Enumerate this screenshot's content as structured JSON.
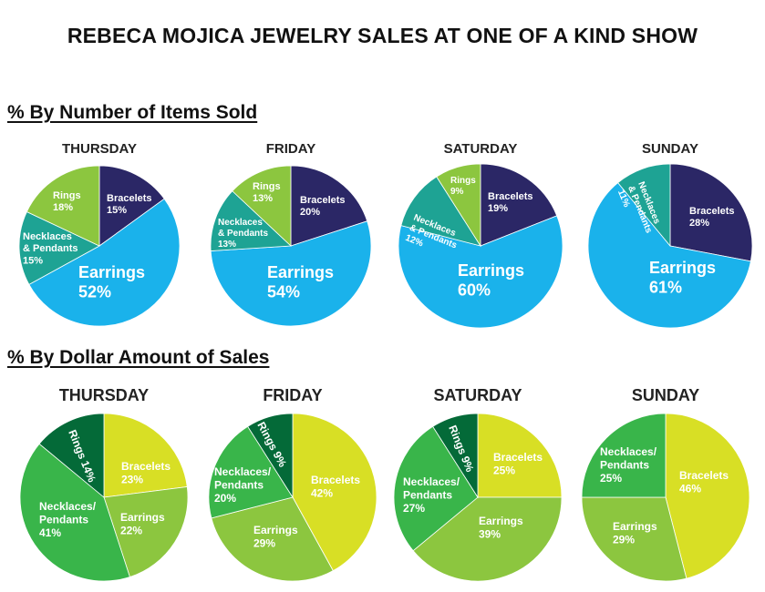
{
  "title": "REBECA MOJICA JEWELRY SALES AT ONE OF A KIND SHOW",
  "sections": [
    {
      "title": "% By Number of Items Sold"
    },
    {
      "title": "% By Dollar Amount of Sales"
    }
  ],
  "colors": {
    "section1": {
      "Bracelets": "#2b2766",
      "Earrings": "#1ab2eb",
      "Necklaces & Pendants": "#1ea394",
      "Rings": "#8cc63f"
    },
    "section2": {
      "Bracelets": "#d8df25",
      "Earrings": "#8cc63f",
      "Necklaces/Pendants": "#39b54a",
      "Rings": "#046a38"
    }
  },
  "chart_data": [
    {
      "type": "pie",
      "group": "% By Number of Items Sold",
      "title": "THURSDAY",
      "slices": [
        {
          "name": "Bracelets",
          "label": [
            "Bracelets",
            "15%"
          ],
          "value": 15
        },
        {
          "name": "Earrings",
          "label": [
            "Earrings",
            "52%"
          ],
          "value": 52
        },
        {
          "name": "Necklaces & Pendants",
          "label": [
            "Necklaces",
            "& Pendants",
            "15%"
          ],
          "value": 15
        },
        {
          "name": "Rings",
          "label": [
            "Rings",
            "18%"
          ],
          "value": 18
        }
      ]
    },
    {
      "type": "pie",
      "group": "% By Number of Items Sold",
      "title": "FRIDAY",
      "slices": [
        {
          "name": "Bracelets",
          "label": [
            "Bracelets",
            "20%"
          ],
          "value": 20
        },
        {
          "name": "Earrings",
          "label": [
            "Earrings",
            "54%"
          ],
          "value": 54
        },
        {
          "name": "Necklaces & Pendants",
          "label": [
            "Necklaces",
            "& Pendants",
            "13%"
          ],
          "value": 13
        },
        {
          "name": "Rings",
          "label": [
            "Rings",
            "13%"
          ],
          "value": 13
        }
      ]
    },
    {
      "type": "pie",
      "group": "% By Number of Items Sold",
      "title": "SATURDAY",
      "slices": [
        {
          "name": "Bracelets",
          "label": [
            "Bracelets",
            "19%"
          ],
          "value": 19
        },
        {
          "name": "Earrings",
          "label": [
            "Earrings",
            "60%"
          ],
          "value": 60
        },
        {
          "name": "Necklaces & Pendants",
          "label": [
            "Necklaces",
            "& Pendants",
            "12%"
          ],
          "value": 12
        },
        {
          "name": "Rings",
          "label": [
            "Rings",
            "9%"
          ],
          "value": 9
        }
      ]
    },
    {
      "type": "pie",
      "group": "% By Number of Items Sold",
      "title": "SUNDAY",
      "slices": [
        {
          "name": "Bracelets",
          "label": [
            "Bracelets",
            "28%"
          ],
          "value": 28
        },
        {
          "name": "Earrings",
          "label": [
            "Earrings",
            "61%"
          ],
          "value": 61
        },
        {
          "name": "Necklaces & Pendants",
          "label": [
            "Necklaces",
            "& Pendants",
            "11%"
          ],
          "value": 11
        }
      ]
    },
    {
      "type": "pie",
      "group": "% By Dollar Amount of Sales",
      "title": "THURSDAY",
      "slices": [
        {
          "name": "Bracelets",
          "label": [
            "Bracelets",
            "23%"
          ],
          "value": 23
        },
        {
          "name": "Earrings",
          "label": [
            "Earrings",
            "22%"
          ],
          "value": 22
        },
        {
          "name": "Necklaces/Pendants",
          "label": [
            "Necklaces/",
            "Pendants",
            "41%"
          ],
          "value": 41
        },
        {
          "name": "Rings",
          "label": [
            "Rings 14%"
          ],
          "value": 14
        }
      ]
    },
    {
      "type": "pie",
      "group": "% By Dollar Amount of Sales",
      "title": "FRIDAY",
      "slices": [
        {
          "name": "Bracelets",
          "label": [
            "Bracelets",
            "42%"
          ],
          "value": 42
        },
        {
          "name": "Earrings",
          "label": [
            "Earrings",
            "29%"
          ],
          "value": 29
        },
        {
          "name": "Necklaces/Pendants",
          "label": [
            "Necklaces/",
            "Pendants",
            "20%"
          ],
          "value": 20
        },
        {
          "name": "Rings",
          "label": [
            "Rings 9%"
          ],
          "value": 9
        }
      ]
    },
    {
      "type": "pie",
      "group": "% By Dollar Amount of Sales",
      "title": "SATURDAY",
      "slices": [
        {
          "name": "Bracelets",
          "label": [
            "Bracelets",
            "25%"
          ],
          "value": 25
        },
        {
          "name": "Earrings",
          "label": [
            "Earrings",
            "39%"
          ],
          "value": 39
        },
        {
          "name": "Necklaces/Pendants",
          "label": [
            "Necklaces/",
            "Pendants",
            "27%"
          ],
          "value": 27
        },
        {
          "name": "Rings",
          "label": [
            "Rings 9%"
          ],
          "value": 9
        }
      ]
    },
    {
      "type": "pie",
      "group": "% By Dollar Amount of Sales",
      "title": "SUNDAY",
      "slices": [
        {
          "name": "Bracelets",
          "label": [
            "Bracelets",
            "46%"
          ],
          "value": 46
        },
        {
          "name": "Earrings",
          "label": [
            "Earrings",
            "29%"
          ],
          "value": 29
        },
        {
          "name": "Necklaces/Pendants",
          "label": [
            "Necklaces/",
            "Pendants",
            "25%"
          ],
          "value": 25
        }
      ]
    }
  ]
}
